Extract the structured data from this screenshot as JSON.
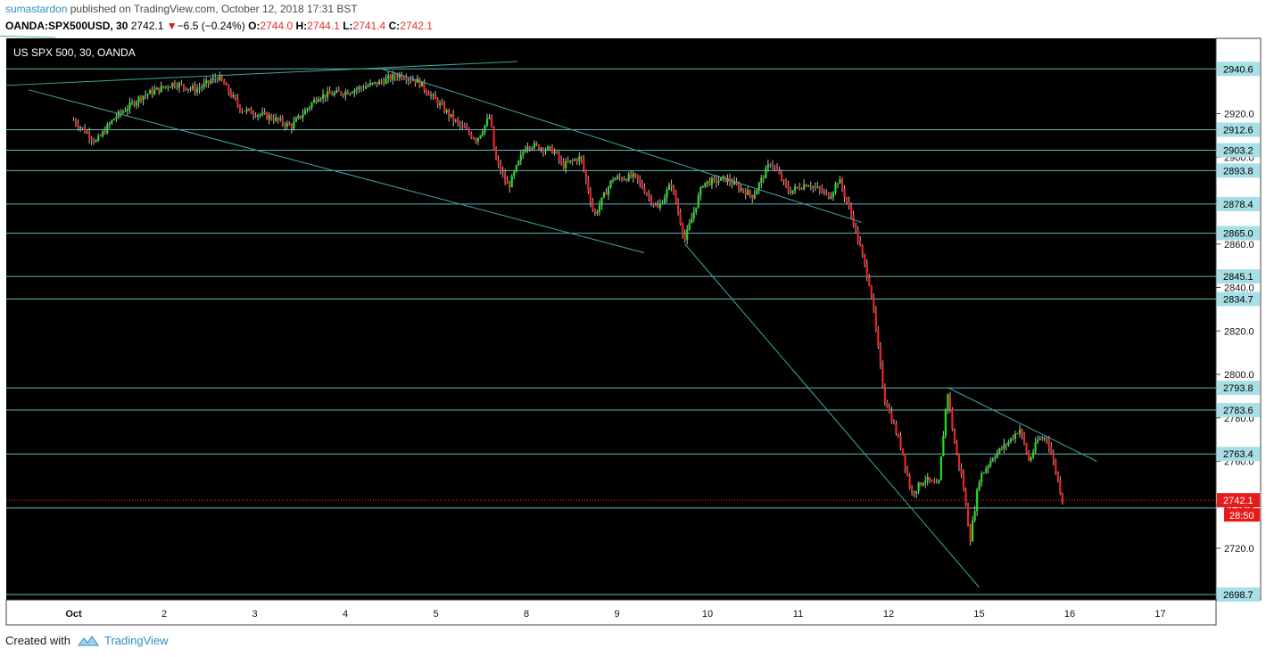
{
  "header": {
    "user": "sumastardon",
    "published_text": "published on TradingView.com, October 12, 2018 17:31 BST",
    "symbol": "OANDA:SPX500USD, 30",
    "last": "2742.1",
    "change": "−6.5 (−0.24%)",
    "o_label": "O:",
    "o_value": "2744.0",
    "h_label": "H:",
    "h_value": "2744.1",
    "l_label": "L:",
    "l_value": "2741.4",
    "c_label": "C:",
    "c_value": "2742.1"
  },
  "footer": {
    "created_with": "Created with",
    "brand": "TradingView"
  },
  "chart_data": {
    "type": "candlestick",
    "title": "US SPX 500, 30, OANDA",
    "x_ticks": [
      "Oct",
      "2",
      "3",
      "4",
      "5",
      "8",
      "9",
      "10",
      "11",
      "12",
      "15",
      "16",
      "17"
    ],
    "y_ticks": [
      "2720.0",
      "2740.0",
      "2760.0",
      "2780.0",
      "2800.0",
      "2820.0",
      "2840.0",
      "2860.0",
      "2880.0",
      "2900.0",
      "2920.0"
    ],
    "ylim": [
      2693,
      2955
    ],
    "horizontal_levels": [
      2940.6,
      2912.6,
      2903.2,
      2893.8,
      2878.4,
      2865.0,
      2845.1,
      2834.7,
      2793.8,
      2783.6,
      2763.4,
      2738.5,
      2698.7
    ],
    "horizontal_level_labels": [
      "2940.6",
      "2912.6",
      "2903.2",
      "2893.8",
      "2878.4",
      "2865.0",
      "2845.1",
      "2834.7",
      "2793.8",
      "2783.6",
      "2763.4",
      "2698.7"
    ],
    "last_price": 2742.1,
    "last_price_label": "2742.1",
    "countdown": "28:50",
    "path_knots": [
      [
        0.0,
        2917
      ],
      [
        0.25,
        2907
      ],
      [
        0.45,
        2918
      ],
      [
        0.75,
        2928
      ],
      [
        1.1,
        2934
      ],
      [
        1.35,
        2931
      ],
      [
        1.6,
        2937
      ],
      [
        1.85,
        2922
      ],
      [
        2.2,
        2918
      ],
      [
        2.4,
        2914
      ],
      [
        2.7,
        2928
      ],
      [
        3.0,
        2930
      ],
      [
        3.35,
        2934
      ],
      [
        3.6,
        2938
      ],
      [
        3.8,
        2935
      ],
      [
        4.0,
        2926
      ],
      [
        4.2,
        2917
      ],
      [
        4.45,
        2908
      ],
      [
        4.6,
        2919
      ],
      [
        4.65,
        2900
      ],
      [
        4.8,
        2886
      ],
      [
        5.0,
        2906
      ],
      [
        5.3,
        2903
      ],
      [
        5.4,
        2896
      ],
      [
        5.6,
        2900
      ],
      [
        5.75,
        2873
      ],
      [
        5.95,
        2890
      ],
      [
        6.2,
        2891
      ],
      [
        6.45,
        2876
      ],
      [
        6.6,
        2888
      ],
      [
        6.75,
        2862
      ],
      [
        6.95,
        2888
      ],
      [
        7.2,
        2890
      ],
      [
        7.5,
        2882
      ],
      [
        7.7,
        2898
      ],
      [
        7.9,
        2884
      ],
      [
        8.1,
        2888
      ],
      [
        8.35,
        2882
      ],
      [
        8.45,
        2890
      ],
      [
        8.6,
        2872
      ],
      [
        8.8,
        2840
      ],
      [
        8.95,
        2790
      ],
      [
        9.15,
        2765
      ],
      [
        9.25,
        2745
      ],
      [
        9.4,
        2752
      ],
      [
        9.55,
        2748
      ],
      [
        9.65,
        2793
      ],
      [
        9.72,
        2770
      ],
      [
        9.82,
        2750
      ],
      [
        9.9,
        2724
      ],
      [
        10.0,
        2752
      ],
      [
        10.15,
        2762
      ],
      [
        10.3,
        2768
      ],
      [
        10.45,
        2775
      ],
      [
        10.55,
        2760
      ],
      [
        10.65,
        2770
      ],
      [
        10.75,
        2771
      ],
      [
        10.85,
        2755
      ],
      [
        10.92,
        2742
      ]
    ],
    "trend_lines": [
      [
        [
          -0.75,
          2933
        ],
        [
          4.9,
          2944
        ]
      ],
      [
        [
          -0.5,
          2931
        ],
        [
          6.3,
          2856
        ]
      ],
      [
        [
          3.4,
          2940.6
        ],
        [
          8.7,
          2870
        ]
      ],
      [
        [
          6.75,
          2860
        ],
        [
          10.0,
          2702
        ]
      ],
      [
        [
          9.65,
          2794
        ],
        [
          11.3,
          2760
        ]
      ],
      [
        [
          -1.0,
          2956
        ],
        [
          -0.2,
          2955
        ]
      ]
    ]
  }
}
